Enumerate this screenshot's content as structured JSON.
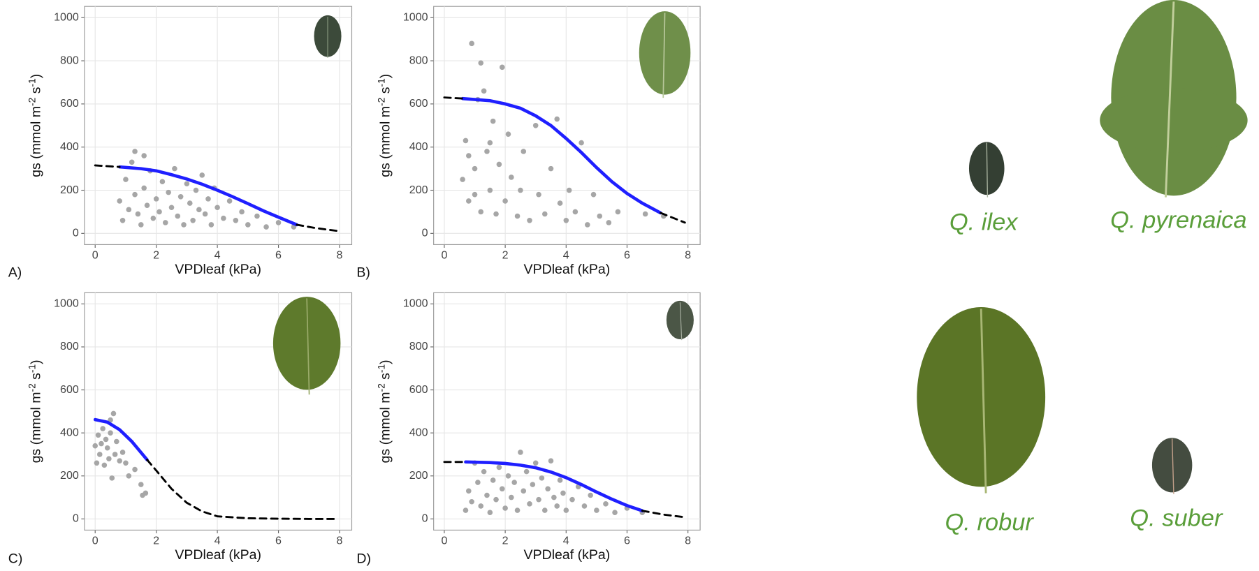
{
  "chart_data": [
    {
      "type": "scatter",
      "panel_label": "A)",
      "x_label": "VPDleaf (kPa)",
      "y_label": [
        "gs (mmol  m",
        "-2",
        " s",
        "-1",
        ")"
      ],
      "xlim": [
        -0.35,
        8.4
      ],
      "ylim": [
        -52,
        1052
      ],
      "xticks": [
        0,
        2,
        4,
        6,
        8
      ],
      "yticks": [
        0,
        200,
        400,
        600,
        800,
        1000
      ],
      "grid": true,
      "series": [
        {
          "style": "points",
          "color": "#a6a6a6",
          "x": [
            0.8,
            0.9,
            1.0,
            1.1,
            1.2,
            1.3,
            1.4,
            1.5,
            1.6,
            1.7,
            1.8,
            1.9,
            2.0,
            2.1,
            2.2,
            2.3,
            2.4,
            2.5,
            2.6,
            2.7,
            2.8,
            2.9,
            3.0,
            3.1,
            3.2,
            3.3,
            3.4,
            3.5,
            3.6,
            3.7,
            3.8,
            3.9,
            4.0,
            4.2,
            4.4,
            4.6,
            4.8,
            5.0,
            5.3,
            5.6,
            6.0,
            6.5,
            1.3,
            1.6
          ],
          "values": [
            150,
            60,
            250,
            110,
            330,
            180,
            90,
            40,
            210,
            130,
            290,
            70,
            160,
            100,
            240,
            50,
            190,
            120,
            300,
            80,
            170,
            40,
            230,
            140,
            60,
            200,
            110,
            270,
            90,
            160,
            40,
            210,
            120,
            70,
            150,
            60,
            100,
            40,
            80,
            30,
            50,
            30,
            380,
            360
          ]
        },
        {
          "style": "solid",
          "color": "#1f1fff",
          "x": [
            0,
            0.8,
            1.5,
            2,
            2.5,
            3,
            3.5,
            4,
            4.5,
            5,
            5.5,
            6,
            6.6,
            7.2,
            7.9
          ],
          "values": [
            null,
            308,
            300,
            290,
            272,
            252,
            228,
            200,
            170,
            138,
            105,
            75,
            40,
            null,
            null
          ]
        },
        {
          "style": "dashed",
          "color": "#000000",
          "x": [
            0,
            0.8,
            1.5,
            2,
            2.5,
            3,
            3.5,
            4,
            4.5,
            5,
            5.5,
            6,
            6.6,
            7.2,
            7.9
          ],
          "values": [
            315,
            308,
            null,
            null,
            null,
            null,
            null,
            null,
            null,
            null,
            null,
            null,
            40,
            25,
            12
          ]
        }
      ]
    },
    {
      "type": "scatter",
      "panel_label": "B)",
      "x_label": "VPDleaf (kPa)",
      "y_label": [
        "gs (mmol  m",
        "-2",
        " s",
        "-1",
        ")"
      ],
      "xlim": [
        -0.35,
        8.4
      ],
      "ylim": [
        -52,
        1052
      ],
      "xticks": [
        0,
        2,
        4,
        6,
        8
      ],
      "yticks": [
        0,
        200,
        400,
        600,
        800,
        1000
      ],
      "grid": true,
      "series": [
        {
          "style": "points",
          "color": "#a6a6a6",
          "x": [
            0.6,
            0.7,
            0.8,
            0.9,
            1.0,
            1.1,
            1.2,
            1.2,
            1.3,
            1.4,
            1.5,
            1.6,
            1.7,
            1.8,
            1.9,
            2.0,
            2.1,
            2.2,
            2.4,
            2.5,
            2.6,
            2.8,
            3.0,
            3.1,
            3.3,
            3.5,
            3.7,
            3.8,
            4.0,
            4.1,
            4.3,
            4.5,
            4.7,
            4.9,
            5.1,
            5.4,
            5.7,
            6.6,
            7.2,
            1.0,
            1.5,
            0.8
          ],
          "values": [
            250,
            430,
            150,
            880,
            300,
            620,
            790,
            100,
            660,
            380,
            200,
            520,
            90,
            320,
            770,
            150,
            460,
            260,
            80,
            200,
            380,
            60,
            500,
            180,
            90,
            300,
            530,
            140,
            60,
            200,
            100,
            420,
            40,
            180,
            80,
            50,
            100,
            90,
            80,
            180,
            420,
            360
          ]
        },
        {
          "style": "solid",
          "color": "#1f1fff",
          "x": [
            0,
            0.6,
            1.5,
            2,
            2.5,
            3,
            3.5,
            4,
            4.5,
            5,
            5.5,
            6,
            6.5,
            7.1,
            7.9
          ],
          "values": [
            null,
            625,
            615,
            600,
            580,
            545,
            500,
            440,
            375,
            305,
            240,
            185,
            140,
            95,
            null
          ]
        },
        {
          "style": "dashed",
          "color": "#000000",
          "x": [
            0,
            0.6,
            1.5,
            2,
            2.5,
            3,
            3.5,
            4,
            4.5,
            5,
            5.5,
            6,
            6.5,
            7.1,
            7.9
          ],
          "values": [
            630,
            625,
            null,
            null,
            null,
            null,
            null,
            null,
            null,
            null,
            null,
            null,
            null,
            95,
            50
          ]
        }
      ]
    },
    {
      "type": "scatter",
      "panel_label": "C)",
      "x_label": "VPDleaf (kPa)",
      "y_label": [
        "gs (mmol  m",
        "-2",
        " s",
        "-1",
        ")"
      ],
      "xlim": [
        -0.35,
        8.4
      ],
      "ylim": [
        -52,
        1052
      ],
      "xticks": [
        0,
        2,
        4,
        6,
        8
      ],
      "yticks": [
        0,
        200,
        400,
        600,
        800,
        1000
      ],
      "grid": true,
      "series": [
        {
          "style": "points",
          "color": "#a6a6a6",
          "x": [
            0.0,
            0.05,
            0.1,
            0.15,
            0.2,
            0.25,
            0.3,
            0.35,
            0.4,
            0.45,
            0.5,
            0.55,
            0.6,
            0.65,
            0.7,
            0.8,
            0.9,
            1.0,
            1.1,
            1.3,
            1.5,
            1.55,
            1.65,
            0.5
          ],
          "values": [
            340,
            260,
            390,
            300,
            350,
            420,
            250,
            370,
            330,
            280,
            400,
            190,
            490,
            300,
            360,
            270,
            310,
            260,
            200,
            230,
            160,
            110,
            120,
            460
          ]
        },
        {
          "style": "solid",
          "color": "#1f1fff",
          "x": [
            0,
            0.4,
            0.8,
            1.2,
            1.7,
            2,
            2.5,
            3,
            3.5,
            4,
            5,
            6,
            7,
            7.9
          ],
          "values": [
            462,
            450,
            415,
            360,
            275,
            null,
            null,
            null,
            null,
            null,
            null,
            null,
            null,
            null
          ]
        },
        {
          "style": "dashed",
          "color": "#000000",
          "x": [
            0,
            0.4,
            0.8,
            1.2,
            1.7,
            2,
            2.5,
            3,
            3.5,
            4,
            5,
            6,
            7,
            7.9
          ],
          "values": [
            null,
            null,
            null,
            null,
            275,
            225,
            140,
            75,
            35,
            12,
            3,
            1,
            0,
            0
          ]
        }
      ]
    },
    {
      "type": "scatter",
      "panel_label": "D)",
      "x_label": "VPDleaf (kPa)",
      "y_label": [
        "gs (mmol  m",
        "-2",
        " s",
        "-1",
        ")"
      ],
      "xlim": [
        -0.35,
        8.4
      ],
      "ylim": [
        -52,
        1052
      ],
      "xticks": [
        0,
        2,
        4,
        6,
        8
      ],
      "yticks": [
        0,
        200,
        400,
        600,
        800,
        1000
      ],
      "grid": true,
      "series": [
        {
          "style": "points",
          "color": "#a6a6a6",
          "x": [
            0.7,
            0.8,
            0.9,
            1.0,
            1.1,
            1.2,
            1.3,
            1.4,
            1.5,
            1.6,
            1.7,
            1.8,
            1.9,
            2.0,
            2.1,
            2.2,
            2.3,
            2.4,
            2.5,
            2.6,
            2.7,
            2.8,
            2.9,
            3.0,
            3.1,
            3.2,
            3.3,
            3.4,
            3.5,
            3.6,
            3.7,
            3.8,
            3.9,
            4.0,
            4.2,
            4.4,
            4.6,
            4.8,
            5.0,
            5.3,
            5.6,
            6.0,
            6.5
          ],
          "values": [
            40,
            130,
            80,
            260,
            170,
            60,
            220,
            110,
            30,
            180,
            90,
            240,
            140,
            50,
            200,
            100,
            170,
            40,
            310,
            130,
            220,
            70,
            160,
            260,
            90,
            190,
            40,
            140,
            270,
            100,
            60,
            180,
            120,
            40,
            90,
            150,
            60,
            110,
            40,
            70,
            30,
            50,
            30
          ]
        },
        {
          "style": "solid",
          "color": "#1f1fff",
          "x": [
            0,
            0.7,
            1.5,
            2,
            2.5,
            3,
            3.5,
            4,
            4.5,
            5,
            5.5,
            6,
            6.5,
            7.2,
            7.9
          ],
          "values": [
            null,
            265,
            262,
            258,
            250,
            238,
            218,
            192,
            160,
            125,
            92,
            62,
            38,
            null,
            null
          ]
        },
        {
          "style": "dashed",
          "color": "#000000",
          "x": [
            0,
            0.7,
            1.5,
            2,
            2.5,
            3,
            3.5,
            4,
            4.5,
            5,
            5.5,
            6,
            6.5,
            7.2,
            7.9
          ],
          "values": [
            265,
            265,
            null,
            null,
            null,
            null,
            null,
            null,
            null,
            null,
            null,
            null,
            38,
            20,
            8
          ]
        }
      ]
    }
  ],
  "species": [
    "Q. ilex",
    "Q. pyrenaica",
    "Q. robur",
    "Q. suber"
  ]
}
